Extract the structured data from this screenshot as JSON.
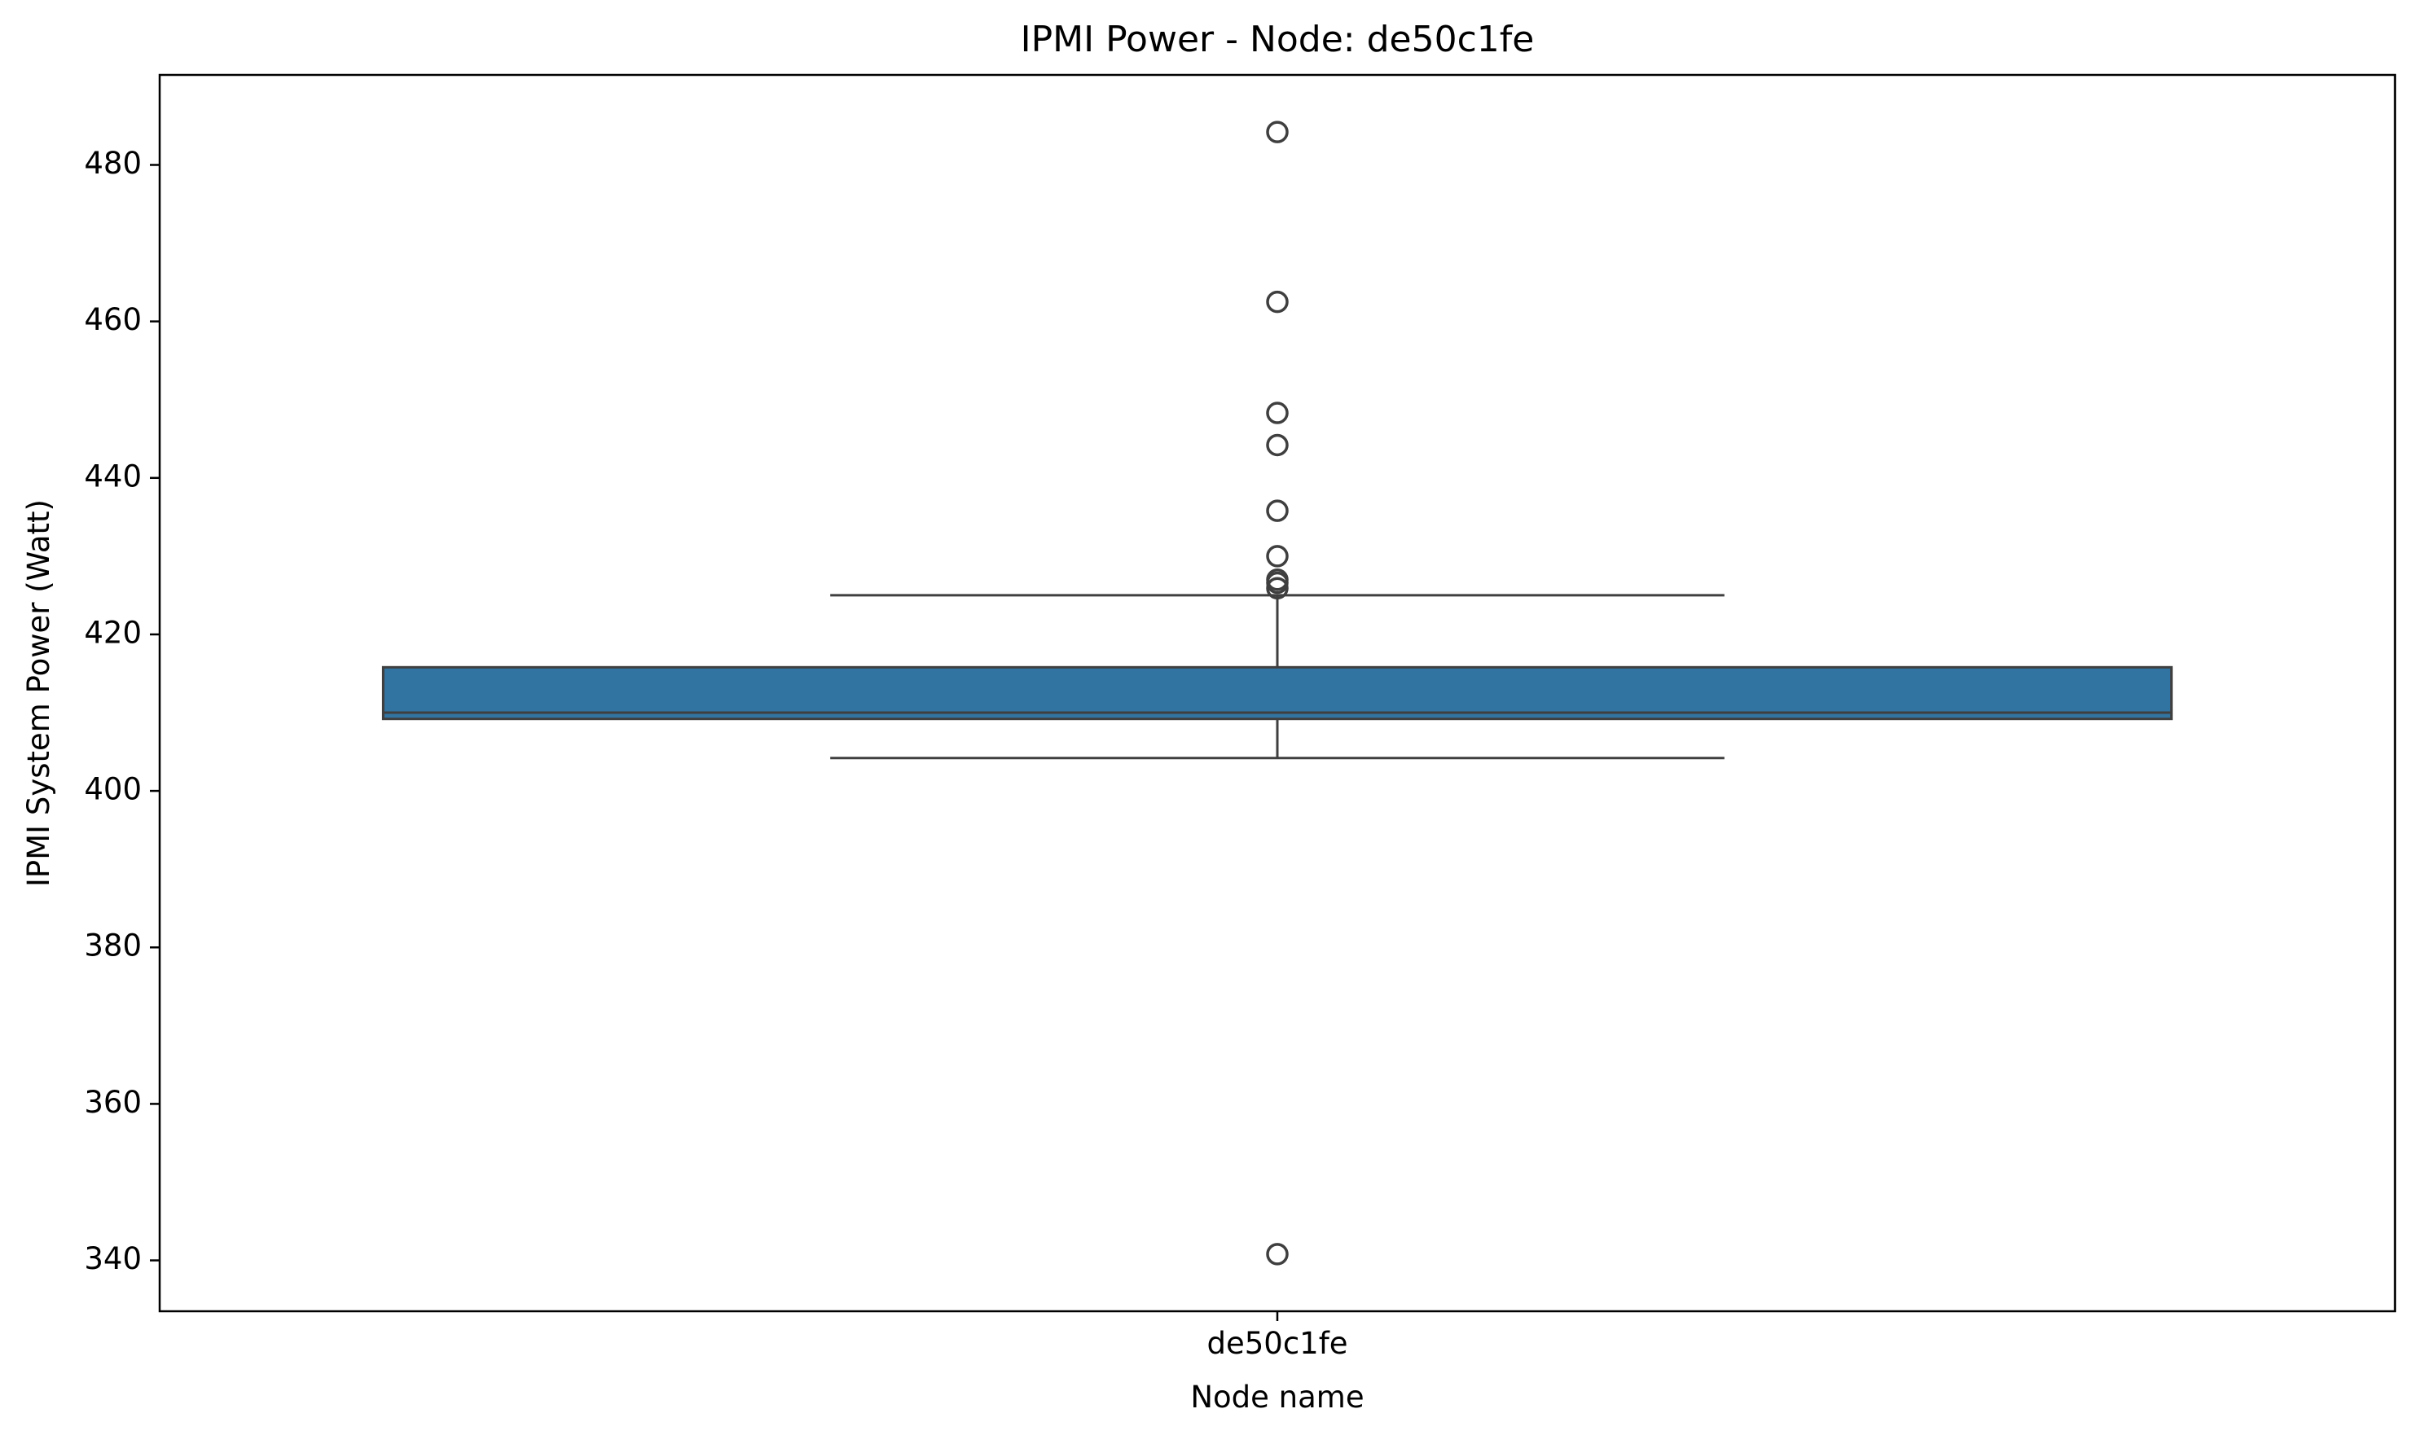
{
  "chart_data": {
    "type": "boxplot",
    "title": "IPMI Power - Node: de50c1fe",
    "xlabel": "Node name",
    "ylabel": "IPMI System Power (Watt)",
    "categories": [
      "de50c1fe"
    ],
    "ylim": [
      333.5,
      491.5
    ],
    "yticks": [
      340,
      360,
      380,
      400,
      420,
      440,
      460,
      480
    ],
    "grid": false,
    "legend": "none",
    "box_color": "#3274a1",
    "line_color": "#3f3f3f",
    "boxes": [
      {
        "category": "de50c1fe",
        "whisker_low": 404.2,
        "q1": 409.2,
        "median": 410.0,
        "q3": 415.8,
        "whisker_high": 425.0,
        "outliers": [
          484.2,
          462.5,
          448.3,
          444.2,
          435.8,
          430.0,
          427.0,
          426.6,
          425.9,
          340.8
        ]
      }
    ]
  }
}
